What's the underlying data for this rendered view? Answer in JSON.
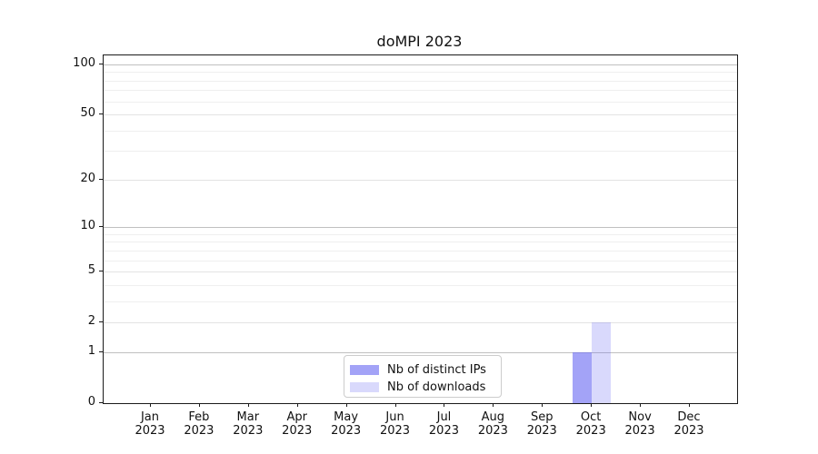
{
  "title": "doMPI 2023",
  "chart_data": {
    "type": "bar",
    "title": "doMPI 2023",
    "categories": [
      "Jan",
      "Feb",
      "Mar",
      "Apr",
      "May",
      "Jun",
      "Jul",
      "Aug",
      "Sep",
      "Oct",
      "Nov",
      "Dec"
    ],
    "category_year": "2023",
    "series": [
      {
        "name": "Nb of distinct IPs",
        "base_color": "#6b6bf2",
        "alpha": 0.62,
        "values": [
          0,
          0,
          0,
          0,
          0,
          0,
          0,
          0,
          0,
          1,
          0,
          0
        ]
      },
      {
        "name": "Nb of downloads",
        "base_color": "#6b6bf2",
        "alpha": 0.26,
        "values": [
          0,
          0,
          0,
          0,
          0,
          0,
          0,
          0,
          0,
          2,
          0,
          0
        ]
      }
    ],
    "xlabel": "",
    "ylabel": "",
    "yscale": "log1p",
    "ylim": [
      0,
      113
    ],
    "yticks": [
      0,
      1,
      2,
      5,
      10,
      20,
      50,
      100
    ],
    "yticks_decade": [
      1,
      10,
      100
    ],
    "yticks_minor_unlabeled": [
      3,
      4,
      6,
      7,
      8,
      9,
      30,
      40,
      60,
      70,
      80,
      90
    ],
    "grid": true,
    "legend_position": "lower center",
    "spine_color": "#1a1a1a",
    "grid_major_color": "#c0c0c0",
    "grid_sub_color": "#e3e3e3",
    "grid_minor_color": "#efefef"
  }
}
